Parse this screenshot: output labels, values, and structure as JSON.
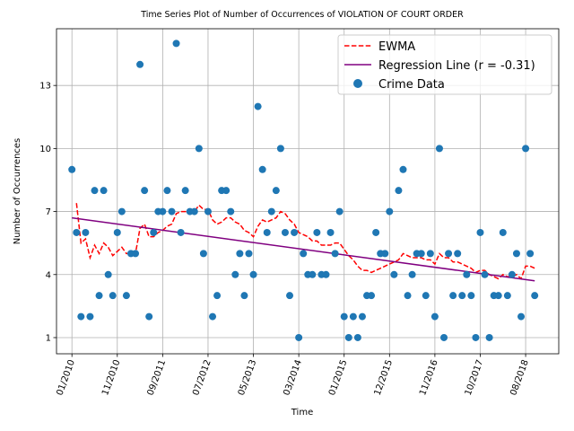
{
  "chart_data": {
    "type": "line",
    "title": "Time Series Plot of Number of Occurrences of VIOLATION OF COURT ORDER",
    "x_label": "Time",
    "y_label": "Number of Occurrences",
    "xlim": [
      -3.4,
      107.3
    ],
    "ylim": [
      0.23,
      15.7
    ],
    "xticks": [
      {
        "value": 0,
        "label": "01/2010"
      },
      {
        "value": 10,
        "label": "11/2010"
      },
      {
        "value": 20,
        "label": "09/2011"
      },
      {
        "value": 30,
        "label": "07/2012"
      },
      {
        "value": 40,
        "label": "05/2013"
      },
      {
        "value": 50,
        "label": "03/2014"
      },
      {
        "value": 60,
        "label": "01/2015"
      },
      {
        "value": 70,
        "label": "12/2015"
      },
      {
        "value": 80,
        "label": "11/2016"
      },
      {
        "value": 90,
        "label": "10/2017"
      },
      {
        "value": 100,
        "label": "08/2018"
      }
    ],
    "yticks": [
      1,
      4,
      7,
      10,
      13
    ],
    "grid": true,
    "legend": "upper right",
    "series": [
      {
        "name": "EWMA",
        "color": "#ff0000",
        "linestyle": "dashed",
        "values": [
          null,
          7.4,
          5.5,
          5.7,
          4.8,
          5.4,
          5.0,
          5.5,
          5.3,
          4.9,
          5.1,
          5.3,
          5.0,
          5.0,
          5.0,
          6.2,
          6.4,
          5.8,
          5.8,
          6.0,
          6.1,
          6.3,
          6.4,
          6.9,
          7.0,
          7.0,
          7.0,
          7.0,
          7.3,
          7.1,
          7.1,
          6.6,
          6.4,
          6.5,
          6.7,
          6.7,
          6.5,
          6.4,
          6.1,
          6.0,
          5.8,
          6.3,
          6.6,
          6.5,
          6.6,
          6.7,
          7.0,
          6.9,
          6.6,
          6.4,
          6.0,
          5.9,
          5.8,
          5.6,
          5.6,
          5.4,
          5.4,
          5.4,
          5.5,
          5.5,
          5.2,
          4.9,
          4.7,
          4.4,
          4.2,
          4.2,
          4.1,
          4.2,
          4.3,
          4.4,
          4.5,
          4.6,
          4.7,
          5.0,
          4.9,
          4.8,
          4.8,
          4.8,
          4.7,
          4.7,
          4.5,
          5.0,
          4.8,
          4.8,
          4.6,
          4.6,
          4.5,
          4.4,
          4.3,
          4.1,
          4.2,
          4.2,
          4.0,
          3.9,
          3.8,
          4.0,
          3.9,
          3.9,
          4.0,
          3.8,
          4.4,
          4.4,
          4.3
        ]
      },
      {
        "name": "Regression Line (r = -0.31)",
        "color": "#800080",
        "linestyle": "solid",
        "x": [
          0,
          102
        ],
        "values": [
          6.7,
          3.7
        ]
      },
      {
        "name": "Crime Data",
        "color": "#1f77b4",
        "marker": "o",
        "values": [
          9,
          6,
          2,
          6,
          2,
          8,
          3,
          8,
          4,
          3,
          6,
          7,
          3,
          5,
          5,
          14,
          8,
          2,
          6,
          7,
          7,
          8,
          7,
          15,
          6,
          8,
          7,
          7,
          10,
          5,
          7,
          2,
          3,
          8,
          8,
          7,
          4,
          5,
          3,
          5,
          4,
          12,
          9,
          6,
          7,
          8,
          10,
          6,
          3,
          6,
          1,
          5,
          4,
          4,
          6,
          4,
          4,
          6,
          5,
          7,
          2,
          1,
          2,
          1,
          2,
          3,
          3,
          6,
          5,
          5,
          7,
          4,
          8,
          9,
          3,
          4,
          5,
          5,
          3,
          5,
          2,
          10,
          1,
          5,
          3,
          5,
          3,
          4,
          3,
          1,
          6,
          4,
          1,
          3,
          3,
          6,
          3,
          4,
          5,
          2,
          10,
          5,
          3
        ]
      }
    ]
  }
}
